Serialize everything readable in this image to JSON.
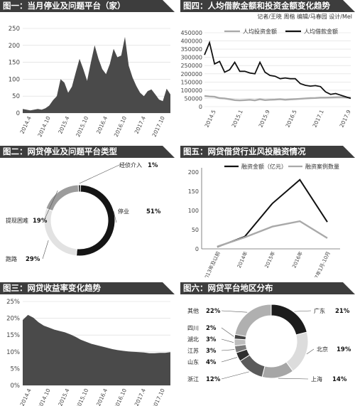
{
  "panels": {
    "p1": {
      "title": "图一：当月停业及问题平台（家）"
    },
    "p2": {
      "title": "图二：网贷停业及问题平台类型"
    },
    "p3": {
      "title": "图三：网贷收益率变化趋势"
    },
    "p4": {
      "title": "图四：人均借款金额和投资金额变化趋势",
      "credit": "记者/王晓 周楷 编辑/马春园 设计/Mel"
    },
    "p5": {
      "title": "图五：网贷借贷行业风投融资情况"
    },
    "p6": {
      "title": "图六：网贷平台地区分布"
    }
  },
  "chart_data": [
    {
      "id": "problem_platforms",
      "type": "area",
      "title": "当月停业及问题平台（家）",
      "ylim": [
        0,
        250
      ],
      "yticks": [
        0,
        50,
        100,
        150,
        200,
        250
      ],
      "xticks": [
        "2014.4",
        "2014.10",
        "2015.4",
        "2015.10",
        "2016.4",
        "2016.10",
        "2017.4",
        "2017.10"
      ],
      "colors": {
        "fill": "#4a4a4a"
      },
      "values": [
        12,
        10,
        8,
        10,
        12,
        10,
        14,
        22,
        38,
        50,
        100,
        90,
        60,
        78,
        120,
        160,
        130,
        95,
        150,
        200,
        160,
        130,
        115,
        145,
        190,
        165,
        170,
        225,
        140,
        105,
        80,
        60,
        50,
        65,
        70,
        55,
        40,
        35,
        72,
        55
      ]
    },
    {
      "id": "platform_types",
      "type": "pie",
      "title": "网贷停业及问题平台类型",
      "labels": [
        "经侦介入",
        "停业",
        "跑路",
        "提现困难"
      ],
      "values": [
        1,
        51,
        29,
        19
      ],
      "value_labels": [
        "1%",
        "51%",
        "29%",
        "19%"
      ],
      "colors": [
        "#1e1e1e",
        "#151515",
        "#e2e2e2",
        "#9c9c9c"
      ]
    },
    {
      "id": "yield_trend",
      "type": "area",
      "title": "网贷收益率变化趋势",
      "ylim": [
        0,
        25
      ],
      "yticks": [
        "0%",
        "5%",
        "10%",
        "15%",
        "20%",
        "25%"
      ],
      "xticks": [
        "2014.4",
        "2014.10",
        "2015.4",
        "2015.10",
        "2016.4",
        "2016.10",
        "2017.4",
        "2017.10"
      ],
      "colors": {
        "fill": "#4a4a4a"
      },
      "values": [
        19.5,
        21,
        20.2,
        18.8,
        17.8,
        17.2,
        16.6,
        16.2,
        15.8,
        15.2,
        14.5,
        13.6,
        13.0,
        12.4,
        12.0,
        11.6,
        11.2,
        10.8,
        10.5,
        10.3,
        10.1,
        10.0,
        9.9,
        9.8,
        9.6,
        9.6,
        9.7,
        9.7,
        9.9
      ]
    },
    {
      "id": "per_capita",
      "type": "line",
      "title": "人均借款金额和投资金额变化趋势",
      "ylim": [
        0,
        450000
      ],
      "yticks": [
        "0",
        "50000",
        "100000",
        "150000",
        "200000",
        "250000",
        "300000",
        "350000",
        "400000",
        "450000"
      ],
      "xticks": [
        "2014.5",
        "2015.1",
        "2015.9",
        "2016.5",
        "2017.1",
        "2017.9"
      ],
      "legend_position": "top",
      "series": [
        {
          "name": "人均投资金额",
          "color": "#a9a9a9",
          "values": [
            65000,
            62000,
            60000,
            52000,
            50000,
            45000,
            40000,
            38000,
            40000,
            42000,
            38000,
            45000,
            40000,
            42000,
            43000,
            45000,
            42000,
            44000,
            46000,
            48000,
            50000,
            52000,
            53000,
            55000,
            55000,
            56000,
            57000,
            58000,
            56000,
            55000
          ]
        },
        {
          "name": "人均借款金额",
          "color": "#111111",
          "values": [
            315000,
            390000,
            260000,
            275000,
            210000,
            225000,
            270000,
            215000,
            215000,
            205000,
            200000,
            270000,
            210000,
            190000,
            185000,
            170000,
            175000,
            170000,
            170000,
            140000,
            130000,
            125000,
            128000,
            122000,
            90000,
            75000,
            80000,
            70000,
            60000,
            50000
          ]
        }
      ]
    },
    {
      "id": "vc_funding",
      "type": "line",
      "title": "网贷借贷行业风投融资情况",
      "ylim": [
        0,
        200
      ],
      "yticks": [
        "0",
        "50",
        "100",
        "150",
        "200"
      ],
      "categories": [
        "2013年及以前",
        "2014年",
        "2015年",
        "2016年",
        "2017年1月-10月"
      ],
      "legend_position": "top",
      "series": [
        {
          "name": "融资金额（亿元）",
          "color": "#111111",
          "values": [
            5,
            32,
            118,
            180,
            70
          ]
        },
        {
          "name": "融资案例数量",
          "color": "#a9a9a9",
          "values": [
            6,
            30,
            58,
            72,
            28
          ]
        }
      ]
    },
    {
      "id": "regions",
      "type": "pie",
      "title": "网贷平台地区分布",
      "labels": [
        "广东",
        "北京",
        "上海",
        "浙江",
        "山东",
        "江苏",
        "湖北",
        "四川",
        "其他"
      ],
      "value_labels": [
        "21%",
        "19%",
        "14%",
        "12%",
        "4%",
        "3%",
        "3%",
        "2%",
        "22%"
      ],
      "values": [
        21,
        19,
        14,
        12,
        4,
        3,
        3,
        2,
        22
      ],
      "colors": [
        "#1c1c1c",
        "#dcdcdc",
        "#a6a6a6",
        "#5a5a5a",
        "#2e2e2e",
        "#7a7a7a",
        "#bdbdbd",
        "#444444",
        "#b0b0b0"
      ]
    }
  ]
}
